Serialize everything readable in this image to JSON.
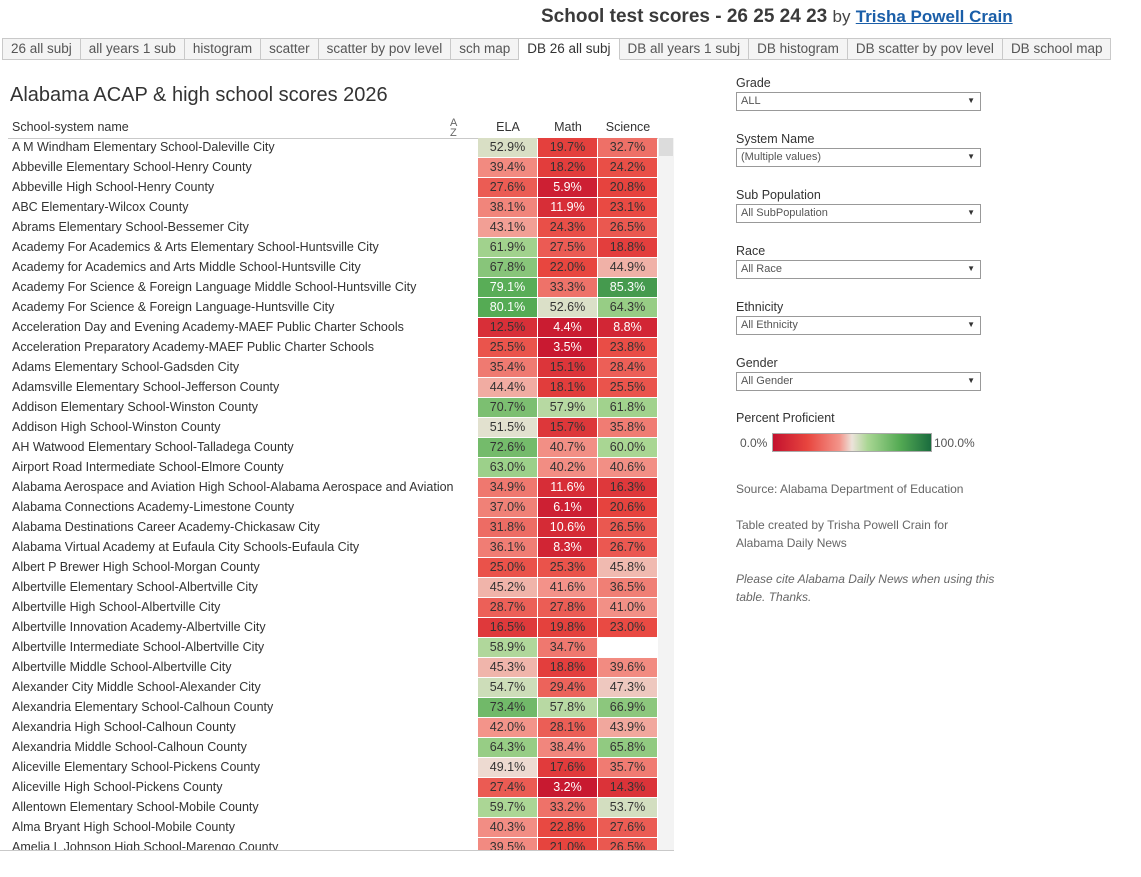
{
  "header": {
    "title": "School test scores - 26 25 24 23",
    "by": "by",
    "author": "Trisha Powell Crain"
  },
  "tabs": [
    {
      "label": "26 all subj",
      "active": false
    },
    {
      "label": "all years 1 sub",
      "active": false
    },
    {
      "label": "histogram",
      "active": false
    },
    {
      "label": "scatter",
      "active": false
    },
    {
      "label": "scatter by pov level",
      "active": false
    },
    {
      "label": "sch map",
      "active": false
    },
    {
      "label": "DB 26 all subj",
      "active": true
    },
    {
      "label": "DB all years 1 subj",
      "active": false
    },
    {
      "label": "DB histogram",
      "active": false
    },
    {
      "label": "DB scatter by pov level",
      "active": false
    },
    {
      "label": "DB school map",
      "active": false
    }
  ],
  "sheet": {
    "title": "Alabama ACAP & high school scores 2026"
  },
  "table": {
    "name_header": "School-system name",
    "columns": [
      "ELA",
      "Math",
      "Science"
    ],
    "rows": [
      {
        "name": "A M Windham Elementary School-Daleville City",
        "ela": "52.9%",
        "math": "19.7%",
        "science": "32.7%"
      },
      {
        "name": "Abbeville Elementary School-Henry County",
        "ela": "39.4%",
        "math": "18.2%",
        "science": "24.2%"
      },
      {
        "name": "Abbeville High School-Henry County",
        "ela": "27.6%",
        "math": "5.9%",
        "science": "20.8%"
      },
      {
        "name": "ABC Elementary-Wilcox County",
        "ela": "38.1%",
        "math": "11.9%",
        "science": "23.1%"
      },
      {
        "name": "Abrams Elementary School-Bessemer City",
        "ela": "43.1%",
        "math": "24.3%",
        "science": "26.5%"
      },
      {
        "name": "Academy For Academics & Arts Elementary School-Huntsville City",
        "ela": "61.9%",
        "math": "27.5%",
        "science": "18.8%"
      },
      {
        "name": "Academy for Academics and Arts Middle School-Huntsville City",
        "ela": "67.8%",
        "math": "22.0%",
        "science": "44.9%"
      },
      {
        "name": "Academy For Science & Foreign Language Middle School-Huntsville City",
        "ela": "79.1%",
        "math": "33.3%",
        "science": "85.3%"
      },
      {
        "name": "Academy For Science & Foreign Language-Huntsville City",
        "ela": "80.1%",
        "math": "52.6%",
        "science": "64.3%"
      },
      {
        "name": "Acceleration Day and Evening Academy-MAEF Public Charter Schools",
        "ela": "12.5%",
        "math": "4.4%",
        "science": "8.8%"
      },
      {
        "name": "Acceleration Preparatory Academy-MAEF Public Charter Schools",
        "ela": "25.5%",
        "math": "3.5%",
        "science": "23.8%"
      },
      {
        "name": "Adams Elementary School-Gadsden City",
        "ela": "35.4%",
        "math": "15.1%",
        "science": "28.4%"
      },
      {
        "name": "Adamsville Elementary School-Jefferson County",
        "ela": "44.4%",
        "math": "18.1%",
        "science": "25.5%"
      },
      {
        "name": "Addison Elementary School-Winston County",
        "ela": "70.7%",
        "math": "57.9%",
        "science": "61.8%"
      },
      {
        "name": "Addison High School-Winston County",
        "ela": "51.5%",
        "math": "15.7%",
        "science": "35.8%"
      },
      {
        "name": "AH Watwood Elementary School-Talladega County",
        "ela": "72.6%",
        "math": "40.7%",
        "science": "60.0%"
      },
      {
        "name": "Airport Road Intermediate School-Elmore County",
        "ela": "63.0%",
        "math": "40.2%",
        "science": "40.6%"
      },
      {
        "name": "Alabama Aerospace and Aviation High School-Alabama Aerospace and Aviation",
        "ela": "34.9%",
        "math": "11.6%",
        "science": "16.3%"
      },
      {
        "name": "Alabama Connections Academy-Limestone County",
        "ela": "37.0%",
        "math": "6.1%",
        "science": "20.6%"
      },
      {
        "name": "Alabama Destinations Career Academy-Chickasaw City",
        "ela": "31.8%",
        "math": "10.6%",
        "science": "26.5%"
      },
      {
        "name": "Alabama Virtual Academy at Eufaula City Schools-Eufaula City",
        "ela": "36.1%",
        "math": "8.3%",
        "science": "26.7%"
      },
      {
        "name": "Albert P Brewer High School-Morgan County",
        "ela": "25.0%",
        "math": "25.3%",
        "science": "45.8%"
      },
      {
        "name": "Albertville Elementary School-Albertville City",
        "ela": "45.2%",
        "math": "41.6%",
        "science": "36.5%"
      },
      {
        "name": "Albertville High School-Albertville City",
        "ela": "28.7%",
        "math": "27.8%",
        "science": "41.0%"
      },
      {
        "name": "Albertville Innovation Academy-Albertville City",
        "ela": "16.5%",
        "math": "19.8%",
        "science": "23.0%"
      },
      {
        "name": "Albertville Intermediate School-Albertville City",
        "ela": "58.9%",
        "math": "34.7%",
        "science": ""
      },
      {
        "name": "Albertville Middle School-Albertville City",
        "ela": "45.3%",
        "math": "18.8%",
        "science": "39.6%"
      },
      {
        "name": "Alexander City Middle School-Alexander City",
        "ela": "54.7%",
        "math": "29.4%",
        "science": "47.3%"
      },
      {
        "name": "Alexandria Elementary School-Calhoun County",
        "ela": "73.4%",
        "math": "57.8%",
        "science": "66.9%"
      },
      {
        "name": "Alexandria High School-Calhoun County",
        "ela": "42.0%",
        "math": "28.1%",
        "science": "43.9%"
      },
      {
        "name": "Alexandria Middle School-Calhoun County",
        "ela": "64.3%",
        "math": "38.4%",
        "science": "65.8%"
      },
      {
        "name": "Aliceville Elementary School-Pickens County",
        "ela": "49.1%",
        "math": "17.6%",
        "science": "35.7%"
      },
      {
        "name": "Aliceville High School-Pickens County",
        "ela": "27.4%",
        "math": "3.2%",
        "science": "14.3%"
      },
      {
        "name": "Allentown Elementary School-Mobile County",
        "ela": "59.7%",
        "math": "33.2%",
        "science": "53.7%"
      },
      {
        "name": "Alma Bryant High School-Mobile County",
        "ela": "40.3%",
        "math": "22.8%",
        "science": "27.6%"
      },
      {
        "name": "Amelia L Johnson High School-Marengo County",
        "ela": "39.5%",
        "math": "21.0%",
        "science": "26.5%"
      }
    ]
  },
  "filters": [
    {
      "label": "Grade",
      "value": "ALL"
    },
    {
      "label": "System Name",
      "value": "(Multiple values)"
    },
    {
      "label": "Sub Population",
      "value": "All SubPopulation"
    },
    {
      "label": "Race",
      "value": "All Race"
    },
    {
      "label": "Ethnicity",
      "value": "All Ethnicity"
    },
    {
      "label": "Gender",
      "value": "All Gender"
    }
  ],
  "legend": {
    "title": "Percent Proficient",
    "min": "0.0%",
    "max": "100.0%",
    "colors": {
      "low": "#c3112e",
      "mid": "#ece3da",
      "high": "#1a6c3e"
    }
  },
  "notes": {
    "source": "Source: Alabama Department of Education",
    "credit": "Table created by Trisha Powell Crain for Alabama Daily News",
    "cite": "Please cite Alabama Daily News when using this table. Thanks."
  },
  "icons": {
    "dropdown": "chevron-down-icon",
    "sort": "sort-icon"
  }
}
